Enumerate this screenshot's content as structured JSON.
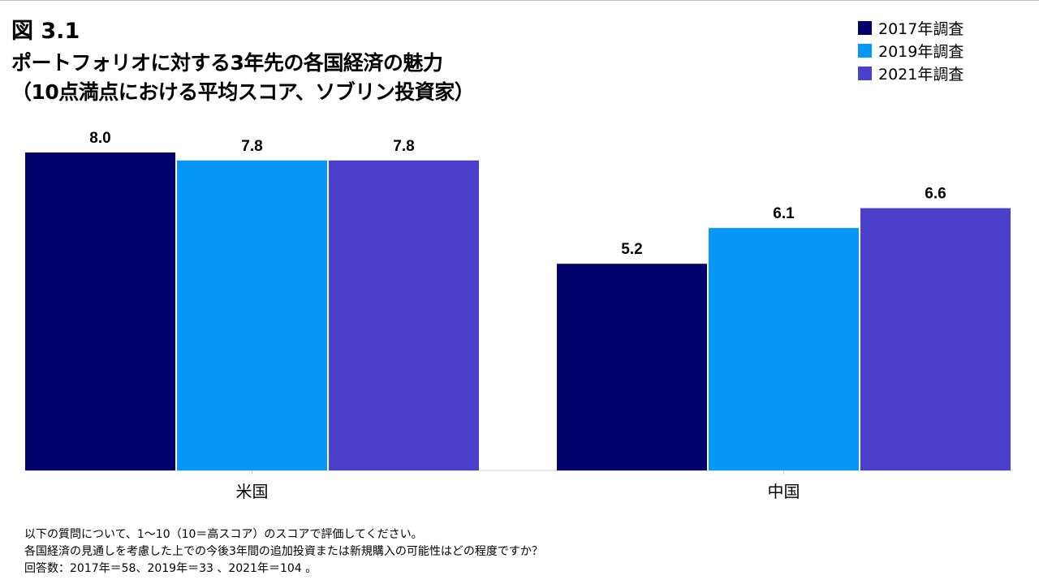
{
  "figure_number": "図 3.1",
  "title_line1": "ポートフォリオに対する3年先の各国経済の魅力",
  "title_line2": "（10点満点における平均スコア、ソブリン投資家）",
  "notes": [
    "以下の質問について、1〜10（10＝高スコア）のスコアで評価してください。",
    "各国経済の見通しを考慮した上での今後3年間の追加投資または新規購入の可能性はどの程度ですか？",
    "回答数：2017年＝58、2019年＝33 、2021年＝104 。"
  ],
  "chart_data": {
    "type": "bar",
    "categories": [
      "米国",
      "中国"
    ],
    "series": [
      {
        "name": "2017年調査",
        "color": "#02016b",
        "values": [
          8.0,
          5.2
        ]
      },
      {
        "name": "2019年調査",
        "color": "#0897f7",
        "values": [
          7.8,
          6.1
        ]
      },
      {
        "name": "2021年調査",
        "color": "#4a40cc",
        "values": [
          7.8,
          6.6
        ]
      }
    ],
    "value_labels": [
      [
        "8.0",
        "5.2"
      ],
      [
        "7.8",
        "6.1"
      ],
      [
        "7.8",
        "6.6"
      ]
    ],
    "title": "ポートフォリオに対する3年先の各国経済の魅力",
    "xlabel": "",
    "ylabel": "",
    "ylim": [
      0,
      10
    ],
    "grid": false,
    "legend_position": "top-right"
  }
}
